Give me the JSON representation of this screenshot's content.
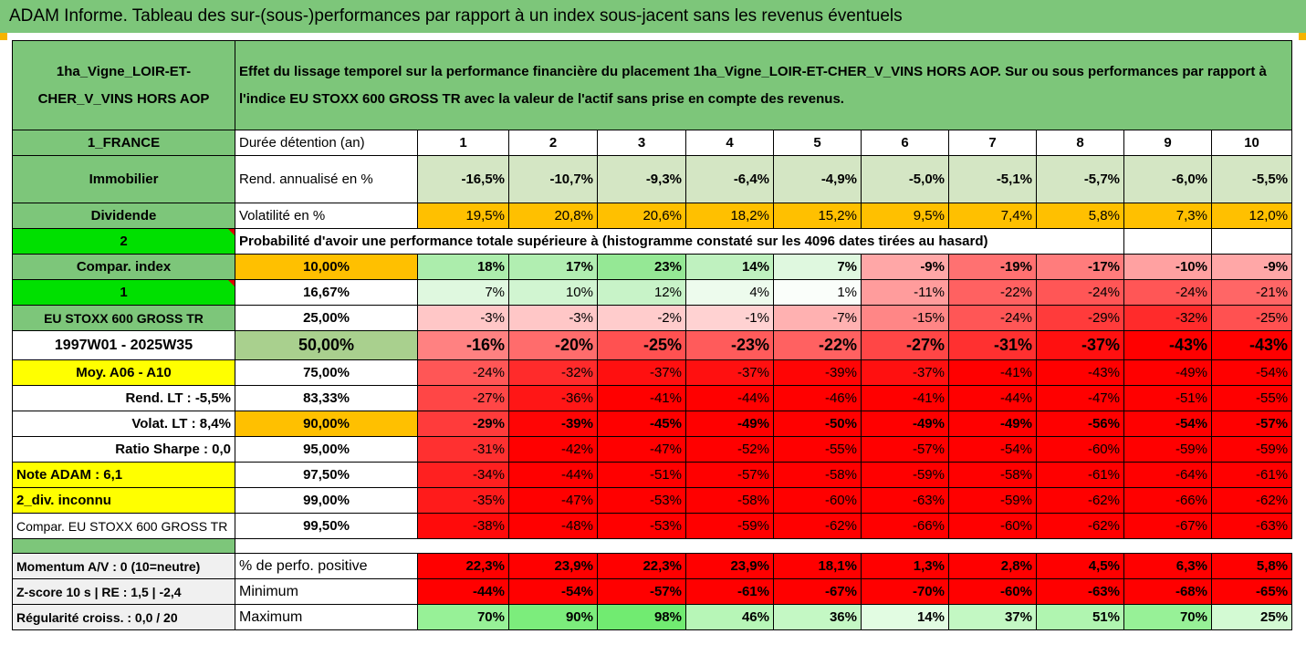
{
  "banner": "ADAM Informe. Tableau des sur-(sous-)performances par rapport à un index sous-jacent sans les revenus éventuels",
  "asset_name": "1ha_Vigne_LOIR-ET-CHER_V_VINS HORS AOP",
  "description": "Effet du lissage temporel sur la performance financière du placement 1ha_Vigne_LOIR-ET-CHER_V_VINS HORS AOP. Sur ou sous performances par rapport à l'indice EU STOXX 600 GROSS TR avec la valeur de l'actif sans prise en compte des revenus.",
  "region": "1_FRANCE",
  "duration_label": "Durée détention (an)",
  "years": [
    "1",
    "2",
    "3",
    "4",
    "5",
    "6",
    "7",
    "8",
    "9",
    "10"
  ],
  "category": "Immobilier",
  "rend_label": "Rend. annualisé en %",
  "rend": [
    "-16,5%",
    "-10,7%",
    "-9,3%",
    "-6,4%",
    "-4,9%",
    "-5,0%",
    "-5,1%",
    "-5,7%",
    "-6,0%",
    "-5,5%"
  ],
  "dividend_label": "Dividende",
  "vol_label": "Volatilité en %",
  "vol": [
    "19,5%",
    "20,8%",
    "20,6%",
    "18,2%",
    "15,2%",
    "9,5%",
    "7,4%",
    "5,8%",
    "7,3%",
    "12,0%"
  ],
  "two": "2",
  "prob_label": "Probabilité d'avoir une performance totale supérieure à (histogramme constaté sur les 4096 dates tirées au hasard)",
  "left_labels": [
    "Compar. index",
    "1",
    "EU STOXX 600 GROSS TR",
    "1997W01 - 2025W35",
    "Moy. A06 - A10",
    "Rend. LT :   -5,5%",
    "Volat. LT :   8,4%",
    "Ratio Sharpe :   0,0",
    "Note ADAM : 6,1",
    "2_div. inconnu",
    "Compar. EU STOXX 600 GROSS TR"
  ],
  "percentiles": [
    "10,00%",
    "16,67%",
    "25,00%",
    "50,00%",
    "75,00%",
    "83,33%",
    "90,00%",
    "95,00%",
    "97,50%",
    "99,00%",
    "99,50%"
  ],
  "prob_rows": [
    [
      "18%",
      "17%",
      "23%",
      "14%",
      "7%",
      "-9%",
      "-19%",
      "-17%",
      "-10%",
      "-9%"
    ],
    [
      "7%",
      "10%",
      "12%",
      "4%",
      "1%",
      "-11%",
      "-22%",
      "-24%",
      "-24%",
      "-21%"
    ],
    [
      "-3%",
      "-3%",
      "-2%",
      "-1%",
      "-7%",
      "-15%",
      "-24%",
      "-29%",
      "-32%",
      "-25%"
    ],
    [
      "-16%",
      "-20%",
      "-25%",
      "-23%",
      "-22%",
      "-27%",
      "-31%",
      "-37%",
      "-43%",
      "-43%"
    ],
    [
      "-24%",
      "-32%",
      "-37%",
      "-37%",
      "-39%",
      "-37%",
      "-41%",
      "-43%",
      "-49%",
      "-54%"
    ],
    [
      "-27%",
      "-36%",
      "-41%",
      "-44%",
      "-46%",
      "-41%",
      "-44%",
      "-47%",
      "-51%",
      "-55%"
    ],
    [
      "-29%",
      "-39%",
      "-45%",
      "-49%",
      "-50%",
      "-49%",
      "-49%",
      "-56%",
      "-54%",
      "-57%"
    ],
    [
      "-31%",
      "-42%",
      "-47%",
      "-52%",
      "-55%",
      "-57%",
      "-54%",
      "-60%",
      "-59%",
      "-59%"
    ],
    [
      "-34%",
      "-44%",
      "-51%",
      "-57%",
      "-58%",
      "-59%",
      "-58%",
      "-61%",
      "-64%",
      "-61%"
    ],
    [
      "-35%",
      "-47%",
      "-53%",
      "-58%",
      "-60%",
      "-63%",
      "-59%",
      "-62%",
      "-66%",
      "-62%"
    ],
    [
      "-38%",
      "-48%",
      "-53%",
      "-59%",
      "-62%",
      "-66%",
      "-60%",
      "-62%",
      "-67%",
      "-63%"
    ]
  ],
  "bottom": [
    {
      "left": "Momentum A/V : 0 (10=neutre)",
      "label": "% de perfo. positive",
      "values": [
        "22,3%",
        "23,9%",
        "22,3%",
        "23,9%",
        "18,1%",
        "1,3%",
        "2,8%",
        "4,5%",
        "6,3%",
        "5,8%"
      ]
    },
    {
      "left": "Z-score 10 s | RE : 1,5 | -2,4",
      "label": "Minimum",
      "values": [
        "-44%",
        "-54%",
        "-57%",
        "-61%",
        "-67%",
        "-70%",
        "-60%",
        "-63%",
        "-68%",
        "-65%"
      ]
    },
    {
      "left": "Régularité croiss. : 0,0 / 20",
      "label": "Maximum",
      "values": [
        "70%",
        "90%",
        "98%",
        "46%",
        "36%",
        "14%",
        "37%",
        "51%",
        "70%",
        "25%"
      ]
    }
  ],
  "colors": {
    "green_header": "#7dc67a",
    "yellow": "#ffff00",
    "bright_green": "#00e000",
    "orange": "#ffc000",
    "red": "#ff0000"
  }
}
